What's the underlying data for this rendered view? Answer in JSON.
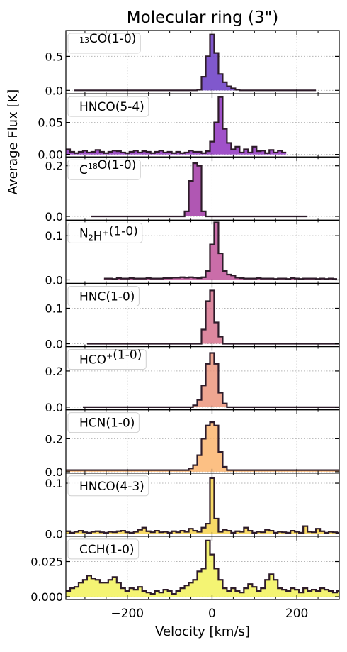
{
  "chart_data": {
    "type": "line",
    "title": "Molecular ring (3\")",
    "xlabel": "Velocity [km/s]",
    "ylabel": "Average Flux [K]",
    "xlim": [
      -345,
      300
    ],
    "x_ticks": [
      -200,
      0,
      200
    ],
    "x_tick_labels": [
      "−200",
      "0",
      "200"
    ],
    "grid": true,
    "legend_placement": "top-left",
    "channel_width_kms": 10,
    "panels": [
      {
        "label_parts": [
          [
            "13",
            "sup"
          ],
          [
            "CO(1-0)",
            "n"
          ]
        ],
        "color": "#6a3bc4",
        "ylim": [
          -0.05,
          0.88
        ],
        "yticks": [
          0.0,
          0.5
        ],
        "ytick_labels": [
          "0.0",
          "0.5"
        ],
        "x_start": -325,
        "values": [
          0,
          0,
          0,
          0,
          0,
          0,
          0,
          0,
          0,
          0,
          0,
          0,
          0,
          0,
          0,
          0,
          0,
          0,
          0,
          0,
          0,
          0,
          0,
          0,
          0,
          0,
          0,
          0,
          0,
          0.01,
          0.2,
          0.5,
          0.82,
          0.55,
          0.24,
          0.12,
          0.06,
          0.03,
          0.01,
          0,
          0,
          0,
          0,
          0,
          0,
          0,
          0,
          0,
          0,
          0,
          0,
          0,
          0,
          0,
          0,
          0,
          0
        ]
      },
      {
        "label_parts": [
          [
            "HNCO(5-4)",
            "n"
          ]
        ],
        "color": "#8f33bf",
        "ylim": [
          -0.004,
          0.095
        ],
        "yticks": [
          0.0,
          0.05
        ],
        "ytick_labels": [
          "0.00",
          "0.05"
        ],
        "x_start": -345,
        "values": [
          0.008,
          0.004,
          0.002,
          0.004,
          0.006,
          0.003,
          0.004,
          0.007,
          0.004,
          0.002,
          0.004,
          0.006,
          0.005,
          0.003,
          0.002,
          0.004,
          0.006,
          0.003,
          0.005,
          0.004,
          0.002,
          0.004,
          0.006,
          0.003,
          0.004,
          0.002,
          0.004,
          0.002,
          0.003,
          0.006,
          0.004,
          0.004,
          0.002,
          0.005,
          0.02,
          0.05,
          0.09,
          0.04,
          0.018,
          0.008,
          0.012,
          0.003,
          0.008,
          0.003,
          0.012,
          0.005,
          0.006,
          0.002,
          0.007,
          0.003,
          0.006,
          0.003
        ]
      },
      {
        "label_parts": [
          [
            "C",
            "n"
          ],
          [
            "18",
            "sup"
          ],
          [
            "O(1-0)",
            "n"
          ]
        ],
        "color": "#a23aa6",
        "ylim": [
          -0.015,
          0.235
        ],
        "yticks": [
          0.0,
          0.2
        ],
        "ytick_labels": [
          "0.0",
          "0.2"
        ],
        "x_start": -285,
        "values": [
          0,
          0,
          0,
          0,
          0,
          0,
          0,
          0,
          0,
          0,
          0,
          0,
          0,
          0,
          0,
          0,
          0,
          0,
          0,
          0,
          0,
          0,
          0.02,
          0.14,
          0.21,
          0.2,
          0.02,
          0,
          0,
          0,
          0,
          0,
          0,
          0,
          0,
          0,
          0,
          0,
          0,
          0,
          0,
          0,
          0,
          0,
          0,
          0,
          0,
          0,
          0,
          0,
          0
        ]
      },
      {
        "label_parts": [
          [
            "N",
            "n"
          ],
          [
            "2",
            "sub"
          ],
          [
            "H",
            "n"
          ],
          [
            "+",
            "sup"
          ],
          [
            "(1-0)",
            "n"
          ]
        ],
        "color": "#c1549a",
        "ylim": [
          -0.008,
          0.135
        ],
        "yticks": [
          0.0,
          0.1
        ],
        "ytick_labels": [
          "0.0",
          "0.1"
        ],
        "x_start": -255,
        "values": [
          0.003,
          0.003,
          0.002,
          0.004,
          0.003,
          0.003,
          0.004,
          0.003,
          0.003,
          0.003,
          0.004,
          0.003,
          0.003,
          0.003,
          0.004,
          0.004,
          0.005,
          0.005,
          0.006,
          0.005,
          0.006,
          0.005,
          0.004,
          0.006,
          0.02,
          0.08,
          0.13,
          0.06,
          0.02,
          0.012,
          0.01,
          0.005,
          0.004,
          0.003,
          0.003,
          0.003,
          0.004,
          0.003,
          0.003,
          0.003,
          0.002,
          0.003,
          0.003,
          0.002,
          0.004,
          0.003,
          0.002,
          0.003,
          0.003,
          0.003,
          0.002,
          0.003,
          0.002,
          0.003,
          0.002
        ]
      },
      {
        "label_parts": [
          [
            "HNC(1-0)",
            "n"
          ]
        ],
        "color": "#d7738e",
        "ylim": [
          -0.008,
          0.17
        ],
        "yticks": [
          0.0,
          0.1
        ],
        "ytick_labels": [
          "0.0",
          "0.1"
        ],
        "x_start": -295,
        "values": [
          0,
          0,
          0,
          0,
          0,
          0,
          0,
          0,
          0,
          0,
          0,
          0,
          0,
          0,
          0,
          0,
          0,
          0,
          0,
          0,
          0,
          0,
          0,
          0,
          0,
          0,
          0,
          0.04,
          0.12,
          0.15,
          0.06,
          0.02,
          0,
          0,
          0,
          0,
          0,
          0,
          0,
          0,
          0,
          0,
          0,
          0,
          0,
          0,
          0,
          0,
          0,
          0,
          0,
          0,
          0,
          0,
          0,
          0,
          0,
          0,
          0,
          0
        ]
      },
      {
        "label_parts": [
          [
            "HCO",
            "n"
          ],
          [
            "+",
            "sup"
          ],
          [
            "(1-0)",
            "n"
          ]
        ],
        "color": "#ec977e",
        "ylim": [
          -0.015,
          0.335
        ],
        "yticks": [
          0.0,
          0.2
        ],
        "ytick_labels": [
          "0.0",
          "0.2"
        ],
        "x_start": -305,
        "values": [
          0,
          0,
          0,
          0,
          0,
          0,
          0,
          0,
          0,
          0,
          0,
          0,
          0,
          0,
          0,
          0,
          0,
          0,
          0,
          0,
          0,
          0,
          0,
          0,
          0,
          0,
          0.01,
          0.04,
          0.12,
          0.24,
          0.3,
          0.24,
          0.08,
          0.02,
          0,
          0,
          0,
          0,
          0,
          0,
          0,
          0,
          0,
          0,
          0,
          0,
          0,
          0,
          0,
          0,
          0,
          0,
          0,
          0,
          0,
          0,
          0,
          0,
          0,
          0,
          0
        ]
      },
      {
        "label_parts": [
          [
            "HCN(1-0)",
            "n"
          ]
        ],
        "color": "#fbb56f",
        "ylim": [
          -0.008,
          0.375
        ],
        "yticks": [
          0.0,
          0.2
        ],
        "ytick_labels": [
          "0.0",
          "0.2"
        ],
        "x_start": -345,
        "values": [
          0.01,
          0.01,
          0.01,
          0.01,
          0.01,
          0.01,
          0.01,
          0.01,
          0.01,
          0.01,
          0.01,
          0.01,
          0.01,
          0.01,
          0.01,
          0.01,
          0.01,
          0.01,
          0.01,
          0.01,
          0.01,
          0.01,
          0.01,
          0.01,
          0.01,
          0.01,
          0.01,
          0.01,
          0.01,
          0.02,
          0.04,
          0.1,
          0.2,
          0.28,
          0.3,
          0.28,
          0.12,
          0.03,
          0.01,
          0.01,
          0.01,
          0.01,
          0.01,
          0.01,
          0.01,
          0.01,
          0.01,
          0.01,
          0.01,
          0.01,
          0.01,
          0.01,
          0.01,
          0.01,
          0.01,
          0.01,
          0.01,
          0.01,
          0.01,
          0.01,
          0.01,
          0.01,
          0.01,
          0.01,
          0.01
        ]
      },
      {
        "label_parts": [
          [
            "HNCO(4-3)",
            "n"
          ]
        ],
        "color": "#f7d34c",
        "ylim": [
          -0.005,
          0.12
        ],
        "yticks": [
          0.0,
          0.1
        ],
        "ytick_labels": [
          "0.0",
          "0.1"
        ],
        "x_start": -345,
        "values": [
          0.005,
          0.002,
          0.004,
          0.006,
          0.003,
          0.002,
          0.004,
          0.005,
          0.003,
          0.002,
          0.004,
          0.003,
          0.005,
          0.006,
          0.003,
          0.002,
          0.004,
          0.008,
          0.012,
          0.005,
          0.003,
          0.006,
          0.003,
          0.004,
          0.002,
          0.005,
          0.003,
          0.006,
          0.004,
          0.01,
          0.006,
          0.004,
          0.012,
          0.02,
          0.11,
          0.03,
          0.004,
          0.008,
          0.006,
          0.002,
          0.005,
          0.004,
          0.012,
          0.006,
          0.002,
          0.004,
          0.003,
          0.008,
          0.006,
          0.002,
          0.004,
          0.003,
          0.002,
          0.006,
          0.004,
          0.002,
          0.015,
          0.004,
          0.003,
          0.01,
          0.005,
          0.002,
          0.004,
          0.003,
          0.002
        ]
      },
      {
        "label_parts": [
          [
            "CCH(1-0)",
            "n"
          ]
        ],
        "color": "#f2f25a",
        "ylim": [
          -0.002,
          0.043
        ],
        "yticks": [
          0.0,
          0.025
        ],
        "ytick_labels": [
          "0.000",
          "0.025"
        ],
        "x_start": -345,
        "values": [
          0.004,
          0.006,
          0.007,
          0.01,
          0.012,
          0.015,
          0.013,
          0.012,
          0.01,
          0.01,
          0.012,
          0.014,
          0.01,
          0.006,
          0.004,
          0.006,
          0.005,
          0.007,
          0.004,
          0.003,
          0.002,
          0.004,
          0.003,
          0.005,
          0.004,
          0.002,
          0.004,
          0.006,
          0.008,
          0.01,
          0.012,
          0.018,
          0.02,
          0.04,
          0.03,
          0.02,
          0.012,
          0.006,
          0.004,
          0.006,
          0.004,
          0.003,
          0.006,
          0.009,
          0.007,
          0.004,
          0.006,
          0.012,
          0.016,
          0.012,
          0.006,
          0.005,
          0.004,
          0.006,
          0.005,
          0.003,
          0.006,
          0.004,
          0.005,
          0.004,
          0.006,
          0.005,
          0.004,
          0.003,
          0.004
        ]
      }
    ]
  }
}
